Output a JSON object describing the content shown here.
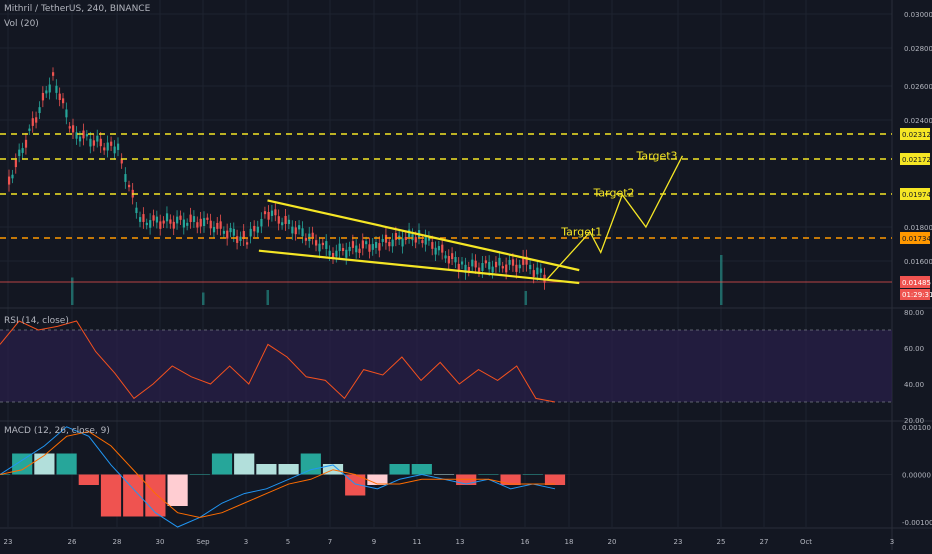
{
  "header": {
    "symbol_line": "Mithril / TetherUS, 240, BINANCE",
    "volume_label": "Vol (20)",
    "rsi_label": "RSI (14, close)",
    "macd_label": "MACD (12, 26, close, 9)"
  },
  "colors": {
    "background": "#131722",
    "grid": "#1e2330",
    "axis_text": "#b2b5be",
    "up": "#26a69a",
    "down": "#ef5350",
    "wedge_and_targets": "#f5e625",
    "yellow_levels": "#f5e625",
    "orange_level": "#ff9800",
    "price_line": "#ef5350",
    "rsi_line": "#f4511e",
    "rsi_band": "#2a1f4a",
    "macd_line": "#2196f3",
    "signal_line": "#ff6d00"
  },
  "chart_data": [
    {
      "type": "line",
      "title": "Mithril / TetherUS, 240, BINANCE",
      "x_tick_labels": [
        "23",
        "26",
        "28",
        "30",
        "Sep",
        "3",
        "5",
        "7",
        "9",
        "11",
        "13",
        "16",
        "18",
        "20",
        "23",
        "25",
        "27",
        "Oct",
        "3"
      ],
      "price_axis_ticks": [
        "0.03000",
        "0.02800",
        "0.02600",
        "0.02400",
        "0.01800",
        "0.01600"
      ],
      "ylim": [
        0.0148,
        0.03
      ],
      "price_series_approx": [
        {
          "x": "23",
          "y": 0.0205
        },
        {
          "x": "25",
          "y": 0.0265
        },
        {
          "x": "26",
          "y": 0.0232
        },
        {
          "x": "28",
          "y": 0.0222
        },
        {
          "x": "29",
          "y": 0.0183
        },
        {
          "x": "Sep",
          "y": 0.0183
        },
        {
          "x": "3",
          "y": 0.0172
        },
        {
          "x": "4",
          "y": 0.0188
        },
        {
          "x": "7",
          "y": 0.0165
        },
        {
          "x": "9",
          "y": 0.017
        },
        {
          "x": "11",
          "y": 0.0175
        },
        {
          "x": "13",
          "y": 0.0157
        },
        {
          "x": "16",
          "y": 0.0158
        },
        {
          "x": "17",
          "y": 0.015
        }
      ],
      "levels": [
        {
          "label": "0.02312",
          "value": 0.02312,
          "style": "dashed-yellow"
        },
        {
          "label": "0.02172",
          "value": 0.02172,
          "style": "dashed-yellow"
        },
        {
          "label": "0.01974",
          "value": 0.01974,
          "style": "dashed-yellow"
        },
        {
          "label": "0.01734",
          "value": 0.01734,
          "style": "dashed-orange"
        },
        {
          "label": "0.01485",
          "value": 0.01485,
          "style": "solid-red",
          "countdown": "01:29:31"
        }
      ],
      "wedge": {
        "upper": [
          [
            "4",
            0.0194
          ],
          [
            "18.5",
            0.0155
          ]
        ],
        "lower": [
          [
            "3.6",
            0.0166
          ],
          [
            "18.5",
            0.0148
          ]
        ]
      },
      "projection_path": [
        [
          "17",
          0.015
        ],
        [
          "19",
          0.0177
        ],
        [
          "19.5",
          0.0165
        ],
        [
          "20.5",
          0.0197
        ],
        [
          "21.6",
          0.018
        ],
        [
          "23.3",
          0.0219
        ]
      ],
      "annotations": [
        {
          "text": "Target1",
          "x": "18.5",
          "y": 0.0175
        },
        {
          "text": "Target2",
          "x": "20",
          "y": 0.0196
        },
        {
          "text": "Target3",
          "x": "22",
          "y": 0.0217
        }
      ],
      "volume_spikes": [
        {
          "x": "25",
          "relative": 1.0
        },
        {
          "x": "26",
          "relative": 0.55
        },
        {
          "x": "Sep",
          "relative": 0.25
        },
        {
          "x": "4",
          "relative": 0.3
        },
        {
          "x": "16",
          "relative": 0.28
        }
      ]
    },
    {
      "type": "line",
      "title": "RSI (14, close)",
      "ylim": [
        20,
        80
      ],
      "y_tick_labels": [
        "80.00",
        "60.00",
        "40.00",
        "20.00"
      ],
      "band": [
        30,
        70
      ],
      "values": [
        62,
        75,
        70,
        72,
        75,
        58,
        46,
        32,
        40,
        50,
        44,
        40,
        50,
        40,
        62,
        55,
        44,
        42,
        32,
        48,
        45,
        55,
        42,
        52,
        40,
        48,
        42,
        50,
        32,
        30
      ]
    },
    {
      "type": "bar",
      "title": "MACD (12, 26, close, 9)",
      "ylim": [
        -0.0011,
        0.0011
      ],
      "y_tick_labels": [
        "0.00100",
        "0.00000",
        "-0.00100"
      ],
      "macd": [
        0.0,
        0.0003,
        0.0006,
        0.001,
        0.0008,
        0.0002,
        -0.0003,
        -0.0008,
        -0.0011,
        -0.0009,
        -0.0006,
        -0.0004,
        -0.0003,
        -0.0001,
        0.0001,
        0.0002,
        -0.0002,
        -0.0003,
        -0.0001,
        0.0,
        -0.0001,
        -0.0002,
        -0.0001,
        -0.0003,
        -0.0002,
        -0.0003
      ],
      "signal": [
        0.0,
        0.0001,
        0.0004,
        0.0008,
        0.0009,
        0.0006,
        0.0001,
        -0.0004,
        -0.0008,
        -0.0009,
        -0.0008,
        -0.0006,
        -0.0004,
        -0.0002,
        -0.0001,
        0.0001,
        0.0,
        -0.0002,
        -0.0002,
        -0.0001,
        -0.0001,
        -0.0001,
        -0.0001,
        -0.0002,
        -0.0002,
        -0.0002
      ]
    }
  ]
}
